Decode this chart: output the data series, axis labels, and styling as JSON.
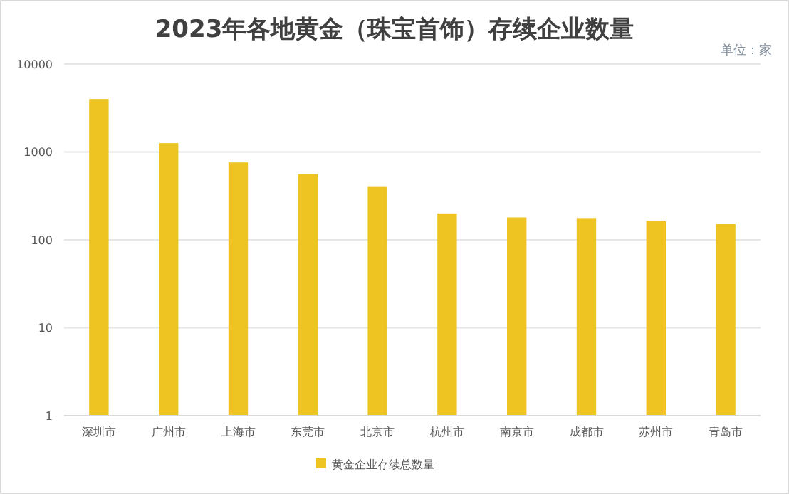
{
  "chart_data": {
    "type": "bar",
    "title": "2023年各地黄金（珠宝首饰）存续企业数量",
    "annotations": [
      "单位：家"
    ],
    "categories": [
      "深圳市",
      "广州市",
      "上海市",
      "东莞市",
      "北京市",
      "杭州市",
      "南京市",
      "成都市",
      "苏州市",
      "青岛市"
    ],
    "series": [
      {
        "name": "黄金企业存续总数量",
        "color": "#eec422",
        "values": [
          4000,
          1260,
          760,
          560,
          400,
          200,
          180,
          177,
          165,
          152
        ]
      }
    ],
    "log": true,
    "ylim": [
      1,
      10000
    ],
    "yticks": [
      1,
      10,
      100,
      1000,
      10000
    ],
    "grid": "y",
    "legend": "bottom"
  }
}
